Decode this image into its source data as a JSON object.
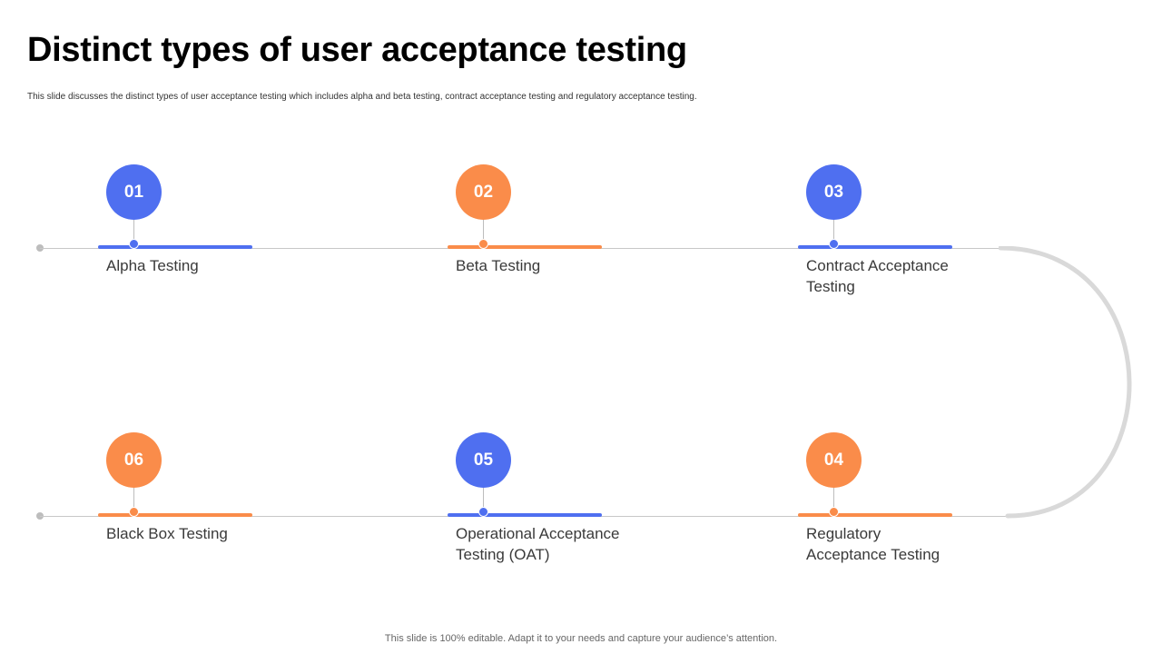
{
  "title": "Distinct types of user acceptance testing",
  "subtitle": "This slide discusses the distinct types of user acceptance testing which includes alpha and beta testing, contract acceptance testing and regulatory acceptance testing.",
  "footer": "This slide is 100% editable. Adapt it to your needs and capture your audience’s attention.",
  "colors": {
    "blue": "#4f6ff0",
    "orange": "#fa8c4a",
    "line": "#c8c8c8",
    "arc": "#d9d9d9"
  },
  "steps": [
    {
      "number": "01",
      "label": "Alpha Testing",
      "color": "blue"
    },
    {
      "number": "02",
      "label": "Beta Testing",
      "color": "orange"
    },
    {
      "number": "03",
      "label": "Contract Acceptance Testing",
      "color": "blue"
    },
    {
      "number": "04",
      "label": "Regulatory Acceptance Testing",
      "color": "orange"
    },
    {
      "number": "05",
      "label": "Operational Acceptance Testing (OAT)",
      "color": "blue"
    },
    {
      "number": "06",
      "label": "Black Box Testing",
      "color": "orange"
    }
  ]
}
